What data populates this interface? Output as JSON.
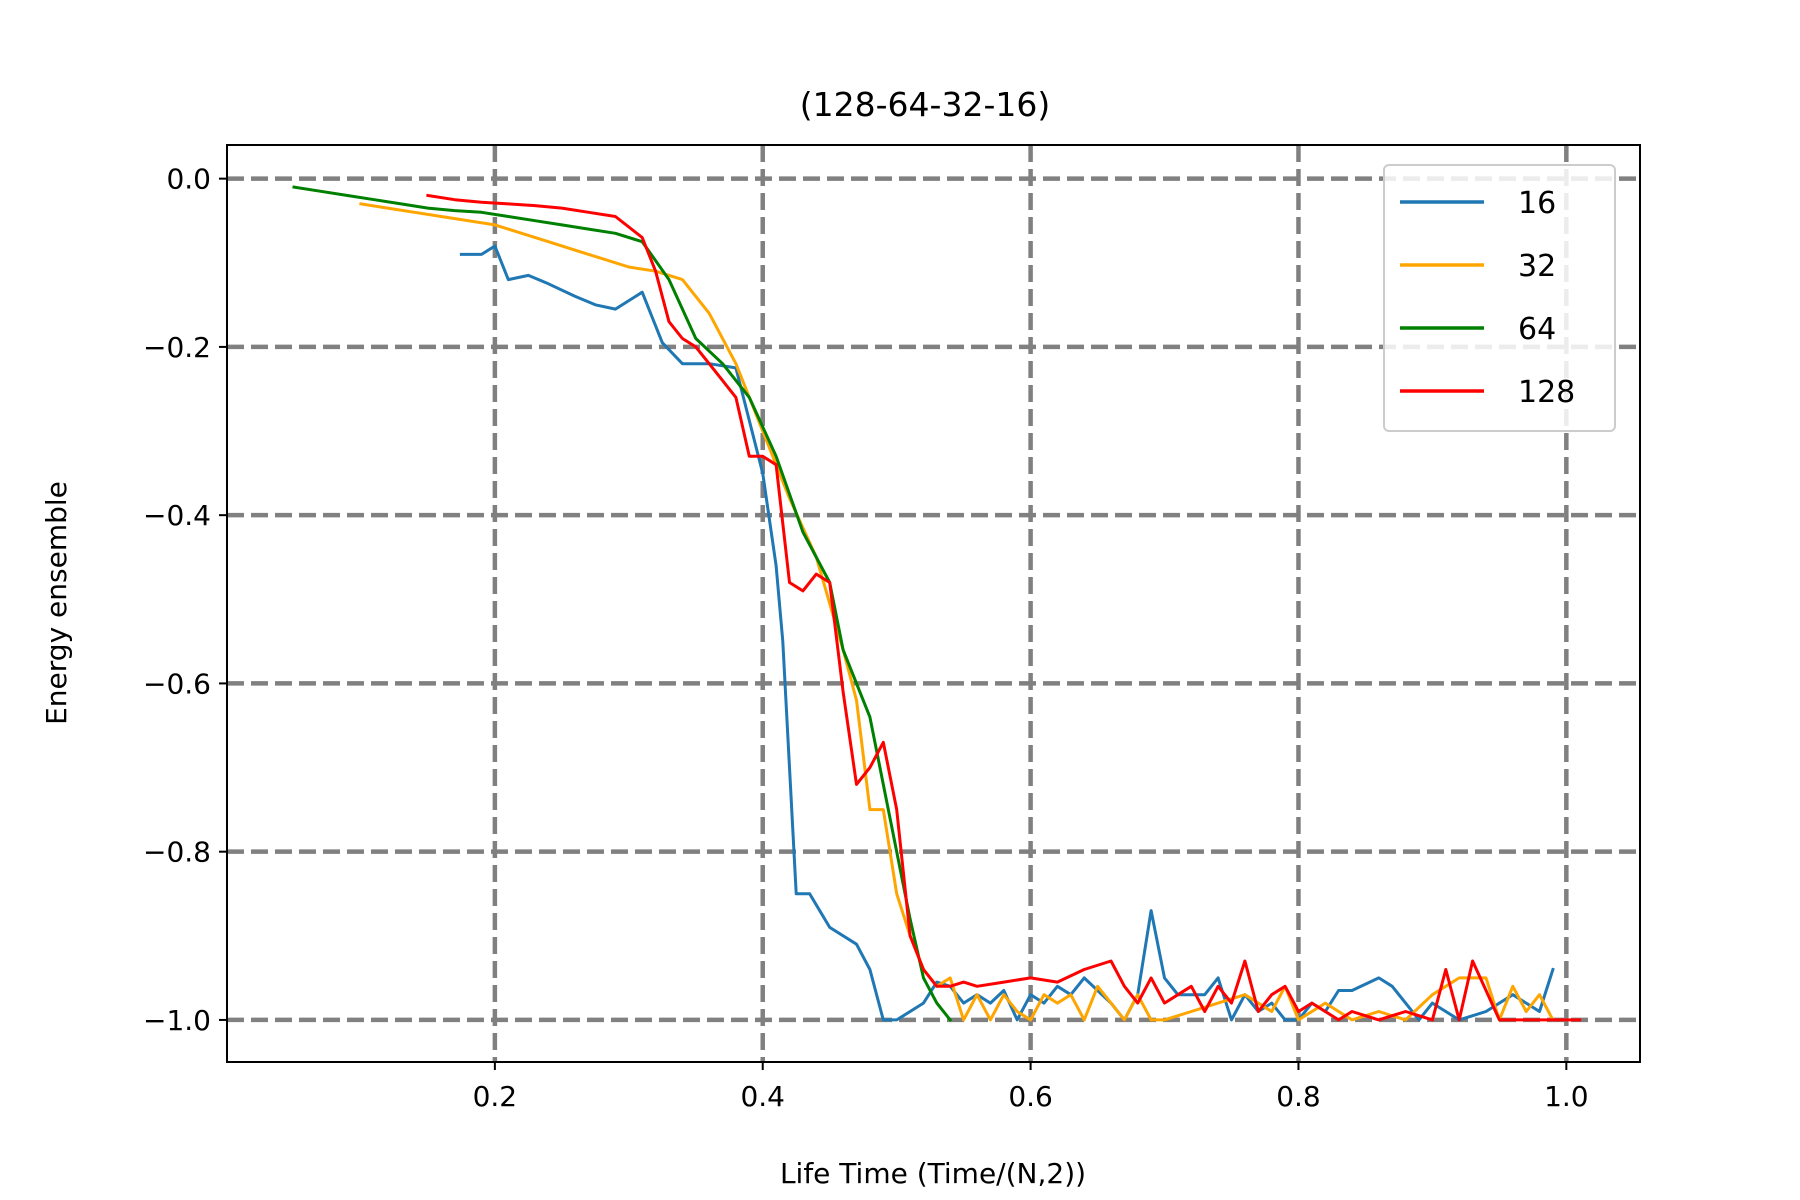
{
  "chart_data": {
    "type": "line",
    "title": "(128-64-32-16)",
    "xlabel": "Life Time (Time/(N,2))",
    "ylabel": "Energy ensemble",
    "xlim": [
      0.0,
      1.055
    ],
    "ylim": [
      -1.05,
      0.04
    ],
    "xticks": [
      0.2,
      0.4,
      0.6,
      0.8,
      1.0
    ],
    "xtick_labels": [
      "0.2",
      "0.4",
      "0.6",
      "0.8",
      "1.0"
    ],
    "yticks": [
      0.0,
      -0.2,
      -0.4,
      -0.6,
      -0.8,
      -1.0
    ],
    "ytick_labels": [
      "0.0",
      "−0.2",
      "−0.4",
      "−0.6",
      "−0.8",
      "−1.0"
    ],
    "grid": true,
    "grid_style": "dashed",
    "legend_position": "top-right",
    "series": [
      {
        "name": "16",
        "color": "#1f77b4",
        "x": [
          0.175,
          0.19,
          0.2,
          0.21,
          0.225,
          0.24,
          0.26,
          0.275,
          0.29,
          0.31,
          0.325,
          0.34,
          0.36,
          0.38,
          0.4,
          0.41,
          0.415,
          0.425,
          0.435,
          0.45,
          0.47,
          0.48,
          0.49,
          0.5,
          0.51,
          0.52,
          0.53,
          0.54,
          0.55,
          0.56,
          0.57,
          0.58,
          0.59,
          0.6,
          0.61,
          0.62,
          0.63,
          0.64,
          0.65,
          0.66,
          0.67,
          0.68,
          0.69,
          0.7,
          0.71,
          0.72,
          0.73,
          0.74,
          0.75,
          0.76,
          0.77,
          0.78,
          0.79,
          0.8,
          0.81,
          0.82,
          0.83,
          0.84,
          0.86,
          0.87,
          0.88,
          0.89,
          0.9,
          0.92,
          0.94,
          0.96,
          0.98,
          0.99
        ],
        "values": [
          -0.09,
          -0.09,
          -0.08,
          -0.12,
          -0.115,
          -0.125,
          -0.14,
          -0.15,
          -0.155,
          -0.135,
          -0.195,
          -0.22,
          -0.22,
          -0.225,
          -0.35,
          -0.46,
          -0.55,
          -0.85,
          -0.85,
          -0.89,
          -0.91,
          -0.94,
          -1.0,
          -1.0,
          -0.99,
          -0.98,
          -0.955,
          -0.96,
          -0.98,
          -0.97,
          -0.98,
          -0.965,
          -1.0,
          -0.97,
          -0.98,
          -0.96,
          -0.97,
          -0.95,
          -0.965,
          -0.98,
          -1.0,
          -0.97,
          -0.87,
          -0.95,
          -0.97,
          -0.97,
          -0.97,
          -0.95,
          -1.0,
          -0.97,
          -0.99,
          -0.98,
          -1.0,
          -1.0,
          -0.98,
          -0.99,
          -0.965,
          -0.965,
          -0.95,
          -0.96,
          -0.98,
          -1.0,
          -0.98,
          -1.0,
          -0.99,
          -0.97,
          -0.99,
          -0.94
        ]
      },
      {
        "name": "32",
        "color": "#ffa500",
        "x": [
          0.1,
          0.12,
          0.14,
          0.16,
          0.18,
          0.2,
          0.22,
          0.24,
          0.26,
          0.28,
          0.3,
          0.32,
          0.34,
          0.36,
          0.38,
          0.4,
          0.42,
          0.44,
          0.46,
          0.47,
          0.48,
          0.49,
          0.5,
          0.51,
          0.52,
          0.53,
          0.54,
          0.55,
          0.56,
          0.57,
          0.58,
          0.59,
          0.6,
          0.61,
          0.62,
          0.63,
          0.64,
          0.65,
          0.66,
          0.67,
          0.68,
          0.69,
          0.7,
          0.72,
          0.74,
          0.76,
          0.78,
          0.79,
          0.8,
          0.82,
          0.84,
          0.86,
          0.88,
          0.9,
          0.92,
          0.94,
          0.95,
          0.96,
          0.97,
          0.98,
          0.99
        ],
        "values": [
          -0.03,
          -0.035,
          -0.04,
          -0.045,
          -0.05,
          -0.055,
          -0.065,
          -0.075,
          -0.085,
          -0.095,
          -0.105,
          -0.11,
          -0.12,
          -0.16,
          -0.22,
          -0.3,
          -0.38,
          -0.45,
          -0.56,
          -0.62,
          -0.75,
          -0.75,
          -0.85,
          -0.9,
          -0.94,
          -0.96,
          -0.95,
          -1.0,
          -0.97,
          -1.0,
          -0.97,
          -0.99,
          -1.0,
          -0.97,
          -0.98,
          -0.97,
          -1.0,
          -0.96,
          -0.98,
          -1.0,
          -0.97,
          -1.0,
          -1.0,
          -0.99,
          -0.98,
          -0.97,
          -0.99,
          -0.96,
          -1.0,
          -0.98,
          -1.0,
          -0.99,
          -1.0,
          -0.97,
          -0.95,
          -0.95,
          -1.0,
          -0.96,
          -0.99,
          -0.97,
          -1.0
        ]
      },
      {
        "name": "64",
        "color": "#008000",
        "x": [
          0.05,
          0.07,
          0.09,
          0.11,
          0.13,
          0.15,
          0.17,
          0.19,
          0.21,
          0.23,
          0.25,
          0.27,
          0.29,
          0.31,
          0.33,
          0.35,
          0.37,
          0.39,
          0.41,
          0.43,
          0.45,
          0.46,
          0.47,
          0.48,
          0.49,
          0.5,
          0.51,
          0.52,
          0.53,
          0.54
        ],
        "values": [
          -0.01,
          -0.015,
          -0.02,
          -0.025,
          -0.03,
          -0.035,
          -0.038,
          -0.04,
          -0.045,
          -0.05,
          -0.055,
          -0.06,
          -0.065,
          -0.075,
          -0.12,
          -0.19,
          -0.22,
          -0.26,
          -0.33,
          -0.42,
          -0.48,
          -0.56,
          -0.6,
          -0.64,
          -0.72,
          -0.8,
          -0.88,
          -0.95,
          -0.98,
          -1.0
        ]
      },
      {
        "name": "128",
        "color": "#ff0000",
        "x": [
          0.15,
          0.17,
          0.19,
          0.21,
          0.23,
          0.25,
          0.27,
          0.29,
          0.31,
          0.32,
          0.33,
          0.34,
          0.35,
          0.36,
          0.37,
          0.38,
          0.39,
          0.4,
          0.41,
          0.42,
          0.43,
          0.44,
          0.45,
          0.46,
          0.47,
          0.48,
          0.49,
          0.5,
          0.51,
          0.52,
          0.53,
          0.54,
          0.55,
          0.56,
          0.58,
          0.6,
          0.62,
          0.64,
          0.66,
          0.67,
          0.68,
          0.69,
          0.7,
          0.71,
          0.72,
          0.73,
          0.74,
          0.75,
          0.76,
          0.77,
          0.78,
          0.79,
          0.8,
          0.81,
          0.82,
          0.83,
          0.84,
          0.86,
          0.88,
          0.9,
          0.91,
          0.92,
          0.93,
          0.95,
          0.97,
          0.99,
          1.01
        ],
        "values": [
          -0.02,
          -0.025,
          -0.028,
          -0.03,
          -0.032,
          -0.035,
          -0.04,
          -0.045,
          -0.07,
          -0.11,
          -0.17,
          -0.19,
          -0.2,
          -0.22,
          -0.24,
          -0.26,
          -0.33,
          -0.33,
          -0.34,
          -0.48,
          -0.49,
          -0.47,
          -0.48,
          -0.61,
          -0.72,
          -0.7,
          -0.67,
          -0.75,
          -0.9,
          -0.94,
          -0.96,
          -0.96,
          -0.955,
          -0.96,
          -0.955,
          -0.95,
          -0.955,
          -0.94,
          -0.93,
          -0.96,
          -0.98,
          -0.95,
          -0.98,
          -0.97,
          -0.96,
          -0.99,
          -0.96,
          -0.98,
          -0.93,
          -0.99,
          -0.97,
          -0.96,
          -0.99,
          -0.98,
          -0.99,
          -1.0,
          -0.99,
          -1.0,
          -0.99,
          -1.0,
          -0.94,
          -1.0,
          -0.93,
          -1.0,
          -1.0,
          -1.0,
          -1.0
        ]
      }
    ]
  }
}
